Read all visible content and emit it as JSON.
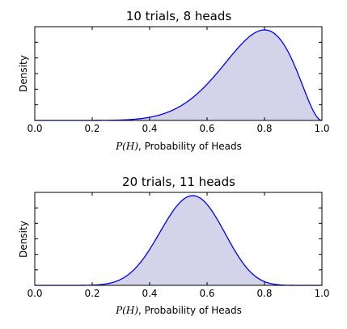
{
  "chart_data": [
    {
      "type": "area",
      "title": "10 trials, 8 heads",
      "trials": 10,
      "heads": 8,
      "xlabel_math": "P(H)",
      "xlabel_text": ", Probability of Heads",
      "ylabel": "Density",
      "xlim": [
        0.0,
        1.0
      ],
      "xticks": [
        "0.0",
        "0.2",
        "0.4",
        "0.6",
        "0.8",
        "1.0"
      ],
      "grid": false,
      "line_color": "#0000ff",
      "fill_color": "#d3d3ea"
    },
    {
      "type": "area",
      "title": "20 trials, 11 heads",
      "trials": 20,
      "heads": 11,
      "xlabel_math": "P(H)",
      "xlabel_text": ", Probability of Heads",
      "ylabel": "Density",
      "xlim": [
        0.0,
        1.0
      ],
      "xticks": [
        "0.0",
        "0.2",
        "0.4",
        "0.6",
        "0.8",
        "1.0"
      ],
      "grid": false,
      "line_color": "#0000ff",
      "fill_color": "#d3d3ea"
    }
  ]
}
